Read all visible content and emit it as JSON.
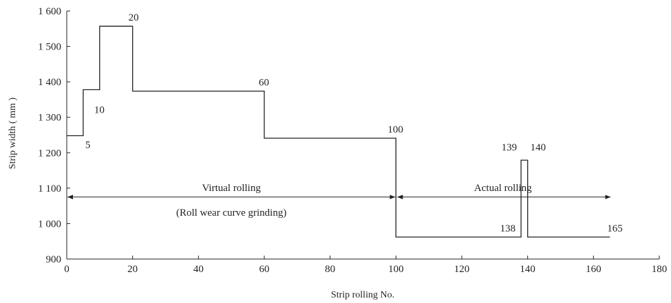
{
  "chart_data": {
    "type": "line",
    "title": "",
    "xlabel": "Strip rolling No.",
    "ylabel": "Strip width ( mm )",
    "xlim": [
      0,
      180
    ],
    "ylim": [
      900,
      1600
    ],
    "xticks": [
      0,
      20,
      40,
      60,
      80,
      100,
      120,
      140,
      160,
      180
    ],
    "xtick_labels": [
      "0",
      "20",
      "40",
      "60",
      "80",
      "100",
      "120",
      "140",
      "160",
      "180"
    ],
    "yticks": [
      900,
      1000,
      1100,
      1200,
      1300,
      1400,
      1500,
      1600
    ],
    "ytick_labels": [
      "900",
      "1 000",
      "1 100",
      "1 200",
      "1 300",
      "1 400",
      "1 500",
      "1 600"
    ],
    "grid": false,
    "legend": "none",
    "color": "#231f20",
    "series": [
      {
        "step_points": [
          [
            0,
            1248
          ],
          [
            5,
            1248
          ],
          [
            5,
            1378
          ],
          [
            10,
            1378
          ],
          [
            10,
            1557
          ],
          [
            20,
            1557
          ],
          [
            20,
            1374
          ],
          [
            60,
            1374
          ],
          [
            60,
            1241
          ],
          [
            100,
            1241
          ],
          [
            100,
            962
          ],
          [
            138,
            962
          ],
          [
            138,
            1179
          ],
          [
            140,
            1179
          ],
          [
            140,
            962
          ],
          [
            165,
            962
          ]
        ]
      }
    ],
    "annotations": [
      {
        "text": "5",
        "x": 5,
        "y": 1248
      },
      {
        "text": "10",
        "x": 10,
        "y": 1378
      },
      {
        "text": "20",
        "x": 20,
        "y": 1557
      },
      {
        "text": "60",
        "x": 60,
        "y": 1374
      },
      {
        "text": "100",
        "x": 100,
        "y": 1241
      },
      {
        "text": "139",
        "x": 138,
        "y": 1179
      },
      {
        "text": "140",
        "x": 140,
        "y": 1179
      },
      {
        "text": "138",
        "x": 138,
        "y": 962
      },
      {
        "text": "165",
        "x": 165,
        "y": 962
      }
    ],
    "ranges": [
      {
        "label": "Virtual rolling",
        "sublabel": "(Roll wear curve grinding)",
        "x_start": 0,
        "x_end": 100,
        "y": 1075
      },
      {
        "label": "Actual rolling",
        "x_start": 100,
        "x_end": 165,
        "y": 1075
      }
    ]
  }
}
